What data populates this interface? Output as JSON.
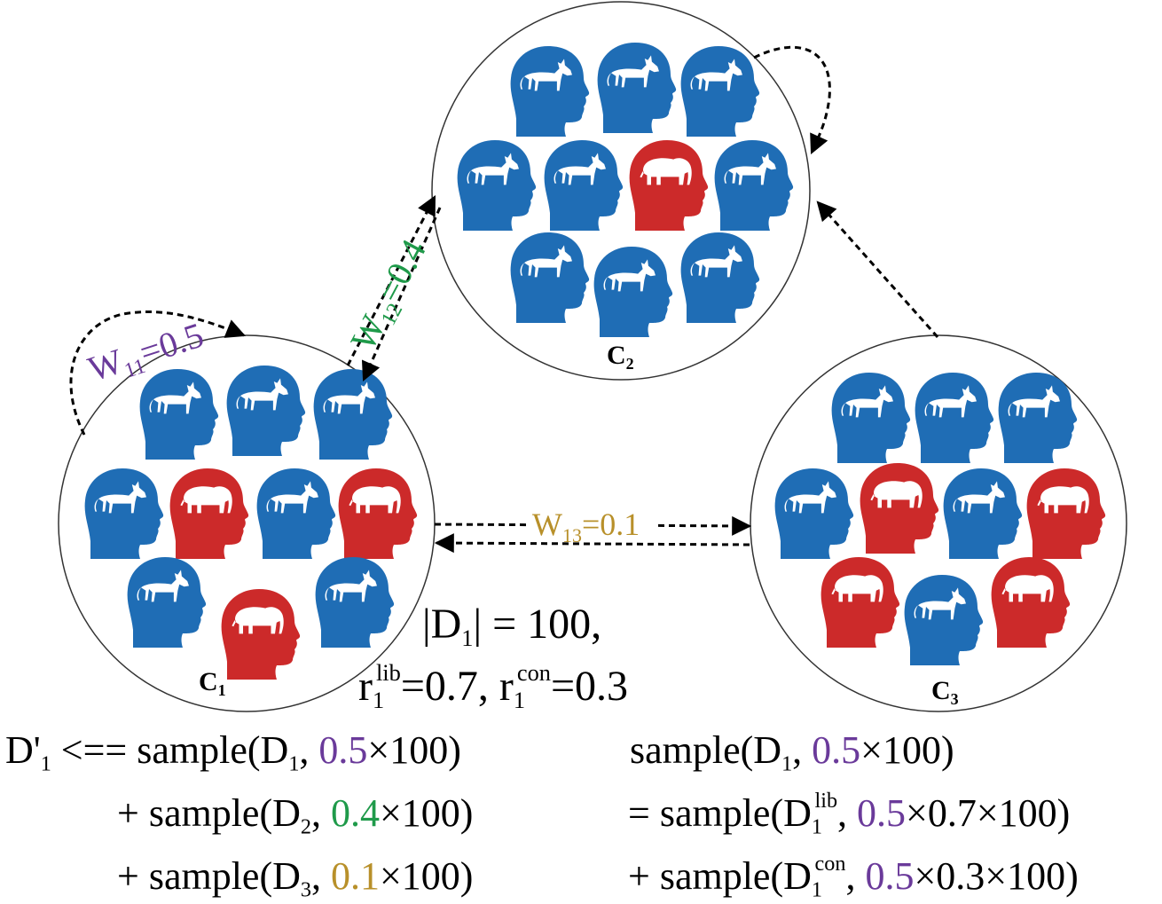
{
  "colors": {
    "liberal": "#1f6db5",
    "conservative": "#cc2a2a",
    "w11": "#6a3a9a",
    "w12": "#1f9a4a",
    "w13": "#b8902a"
  },
  "clusters": [
    {
      "label_main": "C",
      "label_sub": "1",
      "heads": [
        "liberal",
        "liberal",
        "liberal",
        "liberal",
        "conservative",
        "liberal",
        "conservative",
        "liberal",
        "conservative",
        "liberal"
      ]
    },
    {
      "label_main": "C",
      "label_sub": "2",
      "heads": [
        "liberal",
        "liberal",
        "liberal",
        "liberal",
        "liberal",
        "conservative",
        "liberal",
        "liberal",
        "liberal",
        "liberal"
      ]
    },
    {
      "label_main": "C",
      "label_sub": "3",
      "heads": [
        "liberal",
        "liberal",
        "liberal",
        "liberal",
        "conservative",
        "liberal",
        "conservative",
        "conservative",
        "liberal",
        "conservative"
      ]
    }
  ],
  "edges": {
    "w11": {
      "main": "W",
      "sub": "11",
      "value": "=0.5"
    },
    "w12": {
      "main": "W",
      "sub": "12",
      "value": "=0.4"
    },
    "w13": {
      "main": "W",
      "sub": "13",
      "value": "=0.1"
    }
  },
  "info": {
    "d1_size": {
      "open": "|D",
      "sub": "1",
      "close": "| = 100,"
    },
    "ratios": {
      "r1": "r",
      "r1_sub": "1",
      "r1_sup": "lib",
      "r1_val": "=0.7, ",
      "r2": "r",
      "r2_sub": "1",
      "r2_sup": "con",
      "r2_val": "=0.3"
    }
  },
  "formulas": {
    "left": [
      {
        "prefix": "D'",
        "prefix_sub": "1",
        "op": " <== sample(D",
        "d_sub": "1",
        "comma": ", ",
        "w": "0.5",
        "rest": "×100)"
      },
      {
        "op": "+ sample(D",
        "d_sub": "2",
        "comma": ", ",
        "w": "0.4",
        "rest": "×100)"
      },
      {
        "op": "+ sample(D",
        "d_sub": "3",
        "comma": ", ",
        "w": "0.1",
        "rest": "×100)"
      }
    ],
    "right": [
      {
        "op": "sample(D",
        "d_sub": "1",
        "comma": ", ",
        "w": "0.5",
        "rest": "×100)"
      },
      {
        "op": "= sample(D",
        "d_sub": "1",
        "d_sup": "lib",
        "comma": ", ",
        "w": "0.5",
        "rest": "×0.7×100)"
      },
      {
        "op": "+ sample(D",
        "d_sub": "1",
        "d_sup": "con",
        "comma": ", ",
        "w": "0.5",
        "rest": "×0.3×100)"
      }
    ]
  }
}
